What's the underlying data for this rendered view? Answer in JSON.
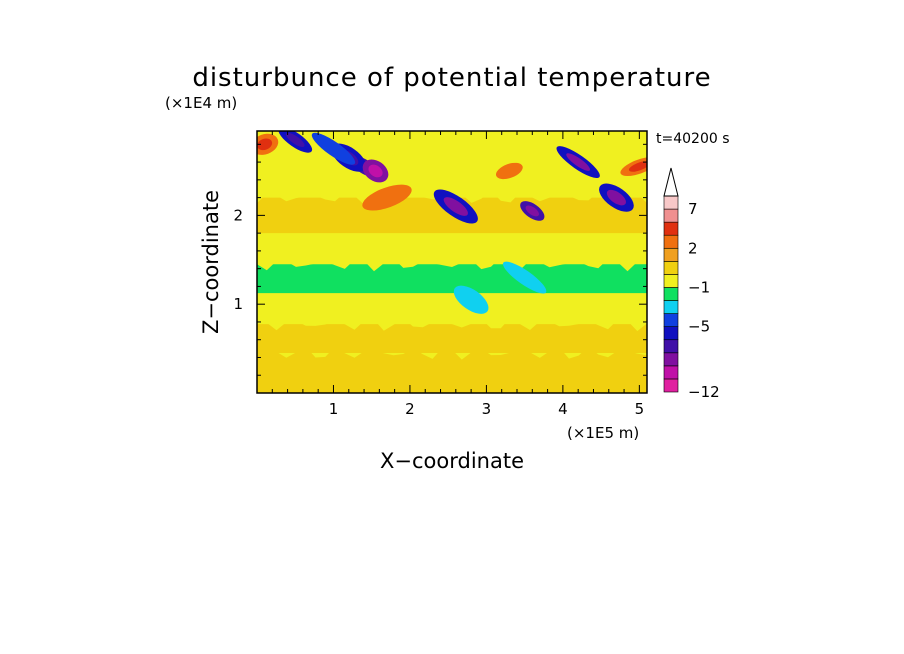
{
  "chart_data": {
    "type": "heatmap",
    "title": "disturbunce of potential temperature",
    "time_label": "t=40200 s",
    "xlabel": "X−coordinate",
    "ylabel": "Z−coordinate",
    "x_unit": "(×1E5 m)",
    "y_unit": "(×1E4 m)",
    "xlim": [
      0,
      5.1
    ],
    "ylim": [
      0,
      2.95
    ],
    "x_ticks": [
      1,
      2,
      3,
      4,
      5
    ],
    "y_ticks": [
      1,
      2
    ],
    "x_tick_labels": [
      "1",
      "2",
      "3",
      "4",
      "5"
    ],
    "y_tick_labels": [
      "1",
      "2"
    ],
    "colorbar": {
      "levels": [
        -12,
        -10,
        -8,
        -6,
        -5,
        -3,
        -2,
        -1,
        0,
        1,
        2,
        3,
        5,
        7,
        9,
        11
      ],
      "colors": [
        "#e020a0",
        "#c010a8",
        "#8010a0",
        "#4010a8",
        "#1010c0",
        "#1040e0",
        "#10d0f0",
        "#10e060",
        "#f0f020",
        "#f0d010",
        "#f0a020",
        "#f07010",
        "#e03010",
        "#f09090",
        "#f8c8c8"
      ],
      "tick_labels": [
        "7",
        "2",
        "−1",
        "−5",
        "−12"
      ],
      "tick_values": [
        7,
        2,
        -1,
        -5,
        -12
      ],
      "extend_top": true
    },
    "bands": [
      {
        "z": 0.3,
        "value": 1.6
      },
      {
        "z": 0.6,
        "value": 1.8
      },
      {
        "z": 0.95,
        "value": 0.6
      },
      {
        "z": 1.3,
        "value": -0.3
      },
      {
        "z": 1.6,
        "value": 0.4
      },
      {
        "z": 2.0,
        "value": 1.2
      },
      {
        "z": 2.4,
        "value": 0.5
      }
    ],
    "features": [
      {
        "x": 1.4,
        "z": 2.55,
        "value": -6
      },
      {
        "x": 1.2,
        "z": 2.65,
        "value": -4
      },
      {
        "x": 1.0,
        "z": 2.75,
        "value": -3
      },
      {
        "x": 1.55,
        "z": 2.5,
        "value": -8
      },
      {
        "x": 0.5,
        "z": 2.85,
        "value": -4
      },
      {
        "x": 2.6,
        "z": 2.1,
        "value": -5
      },
      {
        "x": 3.6,
        "z": 2.05,
        "value": -6
      },
      {
        "x": 4.7,
        "z": 2.2,
        "value": -5
      },
      {
        "x": 4.2,
        "z": 2.6,
        "value": -5
      },
      {
        "x": 0.1,
        "z": 2.8,
        "value": 4
      },
      {
        "x": 5.0,
        "z": 2.55,
        "value": 4
      },
      {
        "x": 1.7,
        "z": 2.2,
        "value": 3
      },
      {
        "x": 3.3,
        "z": 2.5,
        "value": 3
      },
      {
        "x": 2.8,
        "z": 1.05,
        "value": -1.5
      },
      {
        "x": 3.5,
        "z": 1.3,
        "value": -1.2
      }
    ]
  }
}
